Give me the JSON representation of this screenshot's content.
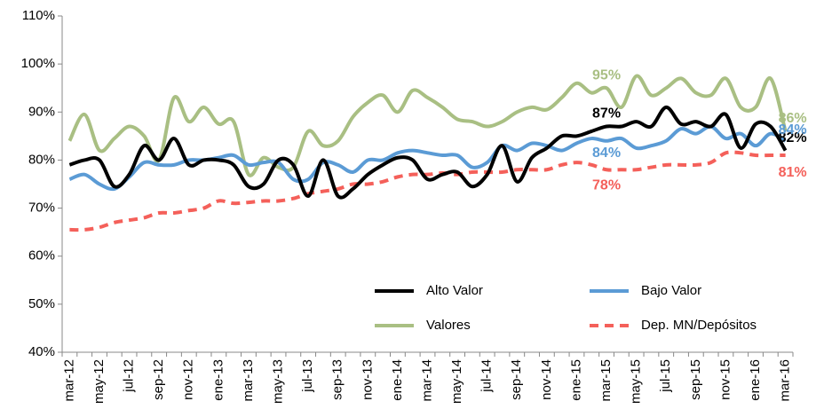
{
  "chart_data": {
    "type": "line",
    "categories": [
      "mar-12",
      null,
      "may-12",
      null,
      "jul-12",
      null,
      "sep-12",
      null,
      "nov-12",
      null,
      "ene-13",
      null,
      "mar-13",
      null,
      "may-13",
      null,
      "jul-13",
      null,
      "sep-13",
      null,
      "nov-13",
      null,
      "ene-14",
      null,
      "mar-14",
      null,
      "may-14",
      null,
      "jul-14",
      null,
      "sep-14",
      null,
      "nov-14",
      null,
      "ene-15",
      null,
      "mar-15",
      null,
      "may-15",
      null,
      "jul-15",
      null,
      "sep-15",
      null,
      "nov-15",
      null,
      "ene-16",
      null,
      "mar-16"
    ],
    "series": [
      {
        "name": "Alto Valor",
        "color": "#000000",
        "style": "solid",
        "values": [
          79,
          80,
          80,
          74.5,
          77,
          83,
          80,
          84.5,
          79,
          80,
          80,
          79,
          74.5,
          75,
          80,
          79,
          72.5,
          80,
          72.5,
          74,
          77,
          79,
          80.5,
          80,
          76,
          77,
          77.5,
          74.5,
          77,
          83,
          75.5,
          80.5,
          82.5,
          85,
          85,
          86,
          87,
          87,
          88,
          87,
          91,
          87.5,
          88,
          87,
          89.5,
          82.5,
          87.5,
          87,
          82
        ],
        "value_labels": [
          null,
          null,
          null,
          null,
          null,
          null,
          null,
          null,
          null,
          null,
          null,
          null,
          null,
          null,
          null,
          null,
          null,
          null,
          null,
          null,
          null,
          null,
          null,
          null,
          null,
          null,
          null,
          null,
          null,
          null,
          null,
          null,
          null,
          null,
          null,
          null,
          "87%",
          null,
          null,
          null,
          null,
          null,
          null,
          null,
          null,
          null,
          null,
          null,
          "82%"
        ]
      },
      {
        "name": "Bajo Valor",
        "color": "#5b9bd5",
        "style": "solid",
        "values": [
          76,
          77,
          75,
          74,
          76.5,
          79.5,
          79,
          79,
          80,
          80,
          80.5,
          81,
          79,
          79.5,
          79.5,
          76,
          76,
          79.5,
          79,
          77.5,
          80,
          80,
          81.5,
          82,
          81.5,
          81,
          81,
          78.5,
          79.5,
          83,
          82,
          83.5,
          83,
          82,
          83.5,
          84.5,
          84,
          84.5,
          82.5,
          83,
          84,
          86.5,
          85.5,
          87,
          84.5,
          85.5,
          83,
          85.5,
          84
        ],
        "value_labels": [
          null,
          null,
          null,
          null,
          null,
          null,
          null,
          null,
          null,
          null,
          null,
          null,
          null,
          null,
          null,
          null,
          null,
          null,
          null,
          null,
          null,
          null,
          null,
          null,
          null,
          null,
          null,
          null,
          null,
          null,
          null,
          null,
          null,
          null,
          null,
          null,
          "84%",
          null,
          null,
          null,
          null,
          null,
          null,
          null,
          null,
          null,
          null,
          null,
          "84%"
        ]
      },
      {
        "name": "Valores",
        "color": "#a9bf83",
        "style": "solid",
        "values": [
          84,
          89.5,
          82,
          84.5,
          87,
          85,
          80,
          93,
          88,
          91,
          87.5,
          88,
          77,
          80.5,
          78.5,
          78.5,
          86,
          83,
          84,
          89,
          92,
          93.5,
          90,
          94.5,
          93,
          91,
          88.5,
          88,
          87,
          88,
          90,
          91,
          90.5,
          93,
          96,
          94,
          95,
          91,
          97.5,
          93.5,
          95,
          97,
          94,
          93.5,
          97,
          91,
          91,
          97,
          86
        ],
        "value_labels": [
          null,
          null,
          null,
          null,
          null,
          null,
          null,
          null,
          null,
          null,
          null,
          null,
          null,
          null,
          null,
          null,
          null,
          null,
          null,
          null,
          null,
          null,
          null,
          null,
          null,
          null,
          null,
          null,
          null,
          null,
          null,
          null,
          null,
          null,
          null,
          null,
          "95%",
          null,
          null,
          null,
          null,
          null,
          null,
          null,
          null,
          null,
          null,
          null,
          "86%"
        ]
      },
      {
        "name": "Dep. MN/Depósitos",
        "color": "#f4605a",
        "style": "dashed",
        "values": [
          65.5,
          65.5,
          66,
          67,
          67.5,
          68,
          69,
          69,
          69.5,
          70,
          71.5,
          71,
          71.2,
          71.5,
          71.5,
          72,
          73,
          73.5,
          74,
          75,
          75,
          75.5,
          76.5,
          77,
          77,
          77.3,
          77,
          77.5,
          77.5,
          77.5,
          78,
          78,
          78,
          79,
          79.5,
          79,
          78,
          78,
          78,
          78.5,
          79,
          79,
          79,
          79.5,
          81.5,
          81.5,
          81,
          81,
          81
        ],
        "value_labels": [
          null,
          null,
          null,
          null,
          null,
          null,
          null,
          null,
          null,
          null,
          null,
          null,
          null,
          null,
          null,
          null,
          null,
          null,
          null,
          null,
          null,
          null,
          null,
          null,
          null,
          null,
          null,
          null,
          null,
          null,
          null,
          null,
          null,
          null,
          null,
          null,
          "78%",
          null,
          null,
          null,
          null,
          null,
          null,
          null,
          null,
          null,
          null,
          null,
          "81%"
        ]
      }
    ],
    "ylim": [
      40,
      110
    ],
    "yticks": [
      {
        "value": 40,
        "label": "40%"
      },
      {
        "value": 50,
        "label": "50%"
      },
      {
        "value": 60,
        "label": "60%"
      },
      {
        "value": 70,
        "label": "70%"
      },
      {
        "value": 80,
        "label": "80%"
      },
      {
        "value": 90,
        "label": "90%"
      },
      {
        "value": 100,
        "label": "100%"
      },
      {
        "value": 110,
        "label": "110%"
      }
    ],
    "grid": false,
    "legend": "lower right"
  }
}
